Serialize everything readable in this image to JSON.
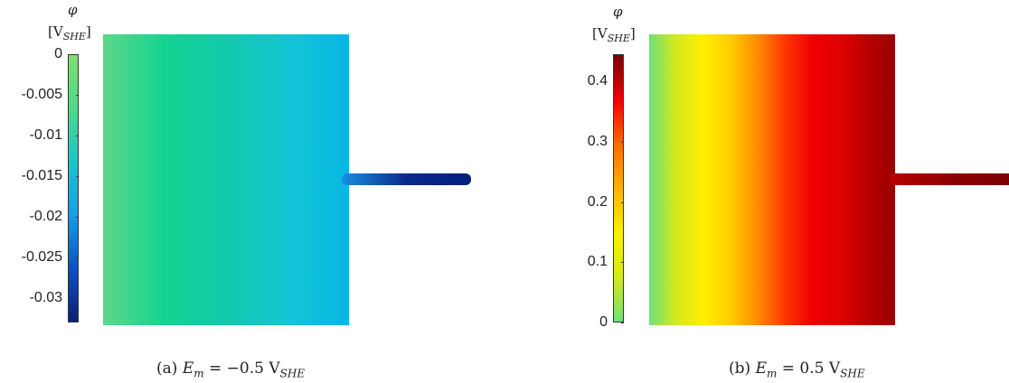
{
  "chart_data": [
    {
      "type": "heatmap",
      "panel": "a",
      "caption_label": "(a)",
      "caption_var": "E",
      "caption_var_sub": "m",
      "caption_eq": " = −0.5 V",
      "caption_unit_sub": "SHE",
      "colorbar_symbol": "φ",
      "colorbar_unit_open": "[V",
      "colorbar_unit_sub": "SHE",
      "colorbar_unit_close": "]",
      "colorbar_range": [
        -0.033,
        0
      ],
      "colorbar_ticks": [
        {
          "label": "0",
          "value": 0
        },
        {
          "label": "-0.005",
          "value": -0.005
        },
        {
          "label": "-0.01",
          "value": -0.01
        },
        {
          "label": "-0.015",
          "value": -0.015
        },
        {
          "label": "-0.02",
          "value": -0.02
        },
        {
          "label": "-0.025",
          "value": -0.025
        },
        {
          "label": "-0.03",
          "value": -0.03
        }
      ],
      "colormap": [
        "#0b1f78",
        "#0e4fc7",
        "#11a1e6",
        "#14c9c9",
        "#4fd98a",
        "#7fe070"
      ],
      "field_gradient": [
        "#5ed68a",
        "#13d48f",
        "#12c9ac",
        "#14c5d4",
        "#06b6e4"
      ],
      "channel_gradient": [
        "#1a8fe0",
        "#0a2a8a",
        "#001e7c"
      ]
    },
    {
      "type": "heatmap",
      "panel": "b",
      "caption_label": "(b)",
      "caption_var": "E",
      "caption_var_sub": "m",
      "caption_eq": " = 0.5 V",
      "caption_unit_sub": "SHE",
      "colorbar_symbol": "φ",
      "colorbar_unit_open": "[V",
      "colorbar_unit_sub": "SHE",
      "colorbar_unit_close": "]",
      "colorbar_range": [
        0,
        0.445
      ],
      "colorbar_ticks": [
        {
          "label": "0",
          "value": 0
        },
        {
          "label": "0.1",
          "value": 0.1
        },
        {
          "label": "0.2",
          "value": 0.2
        },
        {
          "label": "0.3",
          "value": 0.3
        },
        {
          "label": "0.4",
          "value": 0.4
        }
      ],
      "colormap": [
        "#6fe07a",
        "#d6ea1a",
        "#fff000",
        "#ffb000",
        "#ff6a00",
        "#ee0000",
        "#7a0000"
      ],
      "field_gradient": [
        "#6fe07a",
        "#d6ea1a",
        "#fff000",
        "#ffcc00",
        "#ff8800",
        "#ff3300",
        "#ee0000",
        "#e00000",
        "#b80000",
        "#9a0000"
      ],
      "channel_gradient": [
        "#b80000",
        "#8c0000",
        "#7a0000"
      ]
    }
  ]
}
